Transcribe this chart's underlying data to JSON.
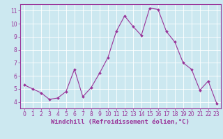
{
  "x": [
    0,
    1,
    2,
    3,
    4,
    5,
    6,
    7,
    8,
    9,
    10,
    11,
    12,
    13,
    14,
    15,
    16,
    17,
    18,
    19,
    20,
    21,
    22,
    23
  ],
  "y": [
    5.3,
    5.0,
    4.7,
    4.2,
    4.3,
    4.8,
    6.5,
    4.4,
    5.1,
    6.2,
    7.4,
    9.4,
    10.6,
    9.8,
    9.1,
    11.2,
    11.1,
    9.4,
    8.6,
    7.0,
    6.5,
    4.9,
    5.6,
    3.9
  ],
  "line_color": "#993399",
  "marker": "D",
  "marker_size": 2.0,
  "bg_color": "#cce8f0",
  "grid_color": "#ffffff",
  "ylabel_ticks": [
    4,
    5,
    6,
    7,
    8,
    9,
    10,
    11
  ],
  "xlabel_ticks": [
    0,
    1,
    2,
    3,
    4,
    5,
    6,
    7,
    8,
    9,
    10,
    11,
    12,
    13,
    14,
    15,
    16,
    17,
    18,
    19,
    20,
    21,
    22,
    23
  ],
  "ylim": [
    3.5,
    11.5
  ],
  "xlim": [
    -0.5,
    23.5
  ],
  "xlabel": "Windchill (Refroidissement éolien,°C)",
  "xlabel_color": "#993399",
  "tick_color": "#993399",
  "axis_color": "#993399",
  "xlabel_fontsize": 6.5,
  "tick_fontsize": 5.5,
  "linewidth": 0.8
}
